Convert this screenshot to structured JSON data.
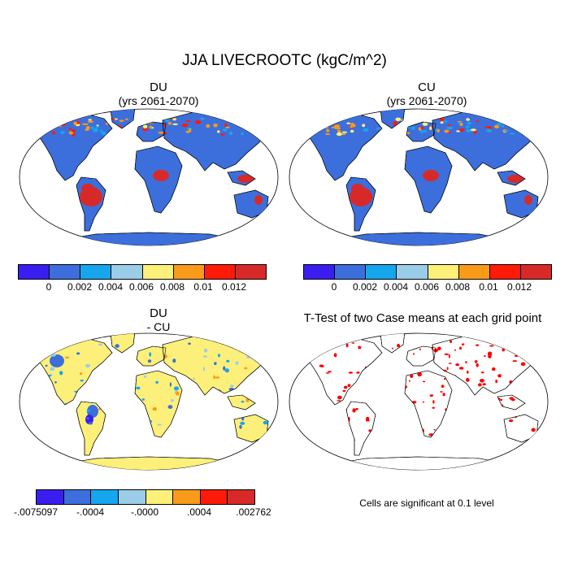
{
  "main_title": "JJA LIVECROOTC (kgC/m^2)",
  "panels": {
    "du": {
      "title": "DU",
      "subtitle": "(yrs 2061-2070)"
    },
    "cu": {
      "title": "CU",
      "subtitle": "(yrs 2061-2070)"
    },
    "diff": {
      "title": "DU",
      "subtitle": "- CU"
    },
    "ttest": {
      "title": "T-Test of two Case means at each grid point",
      "note": "Cells are significant at 0.1 level"
    }
  },
  "colorbars": {
    "main": {
      "colors": [
        "#3a1ef0",
        "#3c6fdc",
        "#15a6ee",
        "#9ccde8",
        "#fdf07a",
        "#f99a1a",
        "#ff1a0a",
        "#d72a28"
      ],
      "labels": [
        "0",
        "0.002",
        "0.004",
        "0.006",
        "0.008",
        "0.01",
        "0.012"
      ]
    },
    "diff": {
      "colors": [
        "#3a1ef0",
        "#3c6fdc",
        "#15a6ee",
        "#9ccde8",
        "#fdf07a",
        "#f99a1a",
        "#ff1a0a",
        "#d72a28"
      ],
      "labels": [
        "-.0075097",
        "-.0004",
        "-.0000",
        ".0004",
        ".002762"
      ]
    }
  },
  "colors": {
    "ocean": "#ffffff",
    "land_low": "#3c6fdc",
    "land_high": "#d72a28",
    "diff_land": "#fdf07a",
    "significant": "#ff0000"
  }
}
